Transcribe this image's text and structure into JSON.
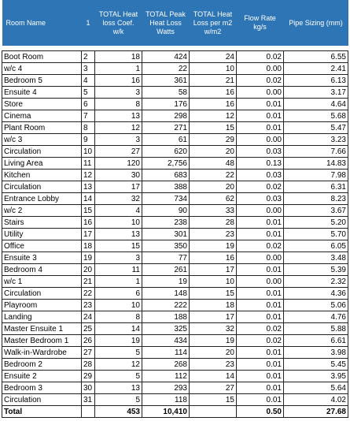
{
  "header": [
    "Room Name",
    "1",
    "TOTAL Heat loss Coef. w/k",
    "TOTAL Peak Heat Loss Watts",
    "TOTAL Heat Loss per m2 w/m2",
    "Flow Rate kg/s",
    "Pipe Sizing (mm)"
  ],
  "rows": [
    [
      "Boot Room",
      "2",
      "18",
      "424",
      "24",
      "0.02",
      "6.55"
    ],
    [
      "w/c 4",
      "3",
      "1",
      "22",
      "10",
      "0.00",
      "2.41"
    ],
    [
      "Bedroom 5",
      "4",
      "16",
      "361",
      "21",
      "0.02",
      "6.13"
    ],
    [
      "Ensuite 4",
      "5",
      "3",
      "58",
      "16",
      "0.00",
      "3.17"
    ],
    [
      "Store",
      "6",
      "8",
      "176",
      "16",
      "0.01",
      "4.64"
    ],
    [
      "Cinema",
      "7",
      "13",
      "298",
      "12",
      "0.01",
      "5.68"
    ],
    [
      "Plant Room",
      "8",
      "12",
      "271",
      "15",
      "0.01",
      "5.47"
    ],
    [
      "w/c 3",
      "9",
      "3",
      "61",
      "29",
      "0.00",
      "3.23"
    ],
    [
      "Circulation",
      "10",
      "27",
      "620",
      "20",
      "0.03",
      "7.66"
    ],
    [
      "Living Area",
      "11",
      "120",
      "2,756",
      "48",
      "0.13",
      "14.83"
    ],
    [
      "Kitchen",
      "12",
      "30",
      "683",
      "22",
      "0.03",
      "7.98"
    ],
    [
      "Circulation",
      "13",
      "17",
      "388",
      "20",
      "0.02",
      "6.31"
    ],
    [
      "Entrance Lobby",
      "14",
      "32",
      "734",
      "62",
      "0.03",
      "8.23"
    ],
    [
      "w/c 2",
      "15",
      "4",
      "90",
      "33",
      "0.00",
      "3.67"
    ],
    [
      "Stairs",
      "16",
      "10",
      "238",
      "28",
      "0.01",
      "5.20"
    ],
    [
      "Utility",
      "17",
      "13",
      "301",
      "23",
      "0.01",
      "5.70"
    ],
    [
      "Office",
      "18",
      "15",
      "350",
      "19",
      "0.02",
      "6.05"
    ],
    [
      "Ensuite 3",
      "19",
      "3",
      "77",
      "16",
      "0.00",
      "3.48"
    ],
    [
      "Bedroom 4",
      "20",
      "11",
      "261",
      "17",
      "0.01",
      "5.39"
    ],
    [
      "w/c 1",
      "21",
      "1",
      "19",
      "10",
      "0.00",
      "2.32"
    ],
    [
      "Circulation",
      "22",
      "6",
      "148",
      "15",
      "0.01",
      "4.36"
    ],
    [
      "Playroom",
      "23",
      "10",
      "222",
      "18",
      "0.01",
      "5.06"
    ],
    [
      "Landing",
      "24",
      "8",
      "188",
      "17",
      "0.01",
      "4.76"
    ],
    [
      "Master Ensuite 1",
      "25",
      "14",
      "325",
      "32",
      "0.02",
      "5.88"
    ],
    [
      "Master Bedroom 1",
      "26",
      "19",
      "434",
      "19",
      "0.02",
      "6.61"
    ],
    [
      "Walk-in-Wardrobe",
      "27",
      "5",
      "114",
      "20",
      "0.01",
      "3.98"
    ],
    [
      "Bedroom 2",
      "28",
      "12",
      "268",
      "23",
      "0.01",
      "5.45"
    ],
    [
      "Ensuite 2",
      "29",
      "5",
      "112",
      "14",
      "0.01",
      "3.95"
    ],
    [
      "Bedroom 3",
      "30",
      "13",
      "293",
      "27",
      "0.01",
      "5.64"
    ],
    [
      "Circulation",
      "31",
      "5",
      "118",
      "15",
      "0.01",
      "4.02"
    ]
  ],
  "total": {
    "label": "Total",
    "coef": "453",
    "watts": "10,410",
    "flow": "0.50",
    "pipe": "27.68"
  }
}
